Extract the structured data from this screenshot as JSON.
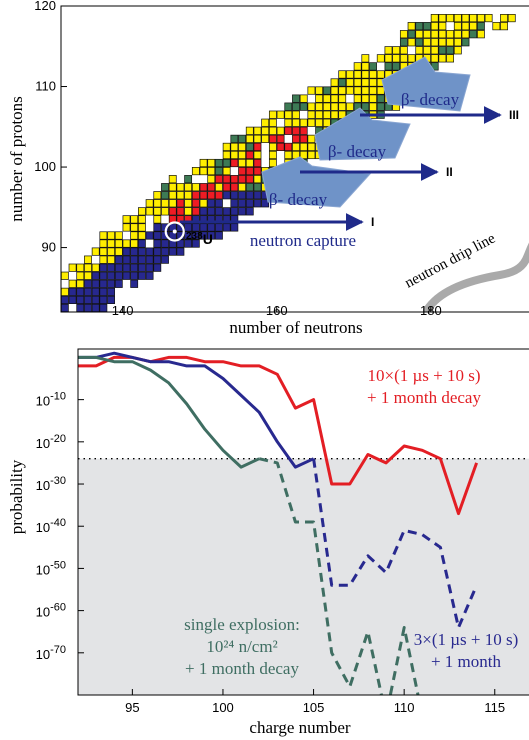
{
  "colors": {
    "yellow": "#ffee00",
    "red": "#ee1c24",
    "green": "#3d7a55",
    "blue": "#27288f",
    "arrow_fill": "#6f93c8",
    "arrow_text": "#1f2a8a",
    "drip": "#aaaaaa",
    "series_red": "#e31e24",
    "series_blue": "#28298f",
    "series_green": "#3f6e62",
    "shade": "#e3e4e6"
  },
  "chart_data": [
    {
      "type": "heatmap",
      "title": "",
      "xlabel": "number of neutrons",
      "ylabel": "number of protons",
      "xlim": [
        132,
        193
      ],
      "ylim": [
        82,
        120
      ],
      "x_ticks": [
        140,
        160,
        180
      ],
      "y_ticks": [
        90,
        100,
        110,
        120
      ],
      "legend": [],
      "band": {
        "description_key": "nuclides colored by category along the stability band",
        "categories": [
          "yellow",
          "red",
          "green",
          "blue"
        ],
        "proton_range": [
          82,
          118
        ],
        "neutron_range": [
          132,
          180
        ]
      },
      "decay_steps": [
        {
          "label": "β- decay",
          "roman": "I"
        },
        {
          "label": "β- decay",
          "roman": "II"
        },
        {
          "label": "β- decay",
          "roman": "III"
        }
      ],
      "capture_label": "neutron capture",
      "start_nucleus": {
        "mass": "238",
        "symbol": "U",
        "N": 146,
        "Z": 92
      },
      "drip_line_label": "neutron drip line"
    },
    {
      "type": "line",
      "title": "",
      "xlabel": "charge number",
      "ylabel": "probability",
      "xlim": [
        92,
        117
      ],
      "ylim": [
        -80,
        2
      ],
      "x_ticks": [
        95,
        100,
        105,
        110,
        115
      ],
      "y_ticks": [
        -10,
        -20,
        -30,
        -40,
        -50,
        -60,
        -70
      ],
      "y_tick_base": "10",
      "threshold": -24,
      "shade_below": -24,
      "grid": false,
      "series": [
        {
          "name_lines": [
            "10×(1 µs + 10 s)",
            "+ 1 month decay"
          ],
          "color_key": "series_red",
          "points": [
            [
              92,
              -2
            ],
            [
              93,
              -2
            ],
            [
              94,
              0
            ],
            [
              95,
              0
            ],
            [
              96,
              -1
            ],
            [
              97,
              0
            ],
            [
              98,
              0
            ],
            [
              99,
              -1
            ],
            [
              100,
              -1
            ],
            [
              101,
              -2
            ],
            [
              102,
              -2
            ],
            [
              103,
              -4
            ],
            [
              104,
              -12
            ],
            [
              105,
              -10
            ],
            [
              106,
              -30
            ],
            [
              107,
              -30
            ],
            [
              108,
              -23
            ],
            [
              109,
              -25
            ],
            [
              110,
              -21
            ],
            [
              111,
              -22
            ],
            [
              112,
              -24
            ],
            [
              113,
              -37
            ],
            [
              114,
              -25
            ]
          ],
          "dash_from": null
        },
        {
          "name_lines": [
            "3×(1 µs + 10 s)",
            "+ 1 month"
          ],
          "color_key": "series_blue",
          "points": [
            [
              92,
              0
            ],
            [
              93,
              0
            ],
            [
              94,
              1
            ],
            [
              95,
              0
            ],
            [
              96,
              -1
            ],
            [
              97,
              -1
            ],
            [
              98,
              -2
            ],
            [
              99,
              -2
            ],
            [
              100,
              -5
            ],
            [
              101,
              -9
            ],
            [
              102,
              -13
            ],
            [
              103,
              -20
            ],
            [
              104,
              -26
            ],
            [
              105,
              -24
            ],
            [
              106,
              -54
            ],
            [
              107,
              -54
            ],
            [
              108,
              -47
            ],
            [
              109,
              -51
            ],
            [
              110,
              -41
            ],
            [
              111,
              -42
            ],
            [
              112,
              -45
            ],
            [
              113,
              -64
            ],
            [
              114,
              -54
            ]
          ],
          "dash_from": 105
        },
        {
          "name_lines": [
            "single explosion:",
            "10²⁴ n/cm²",
            "+ 1 month decay"
          ],
          "color_key": "series_green",
          "points": [
            [
              92,
              0
            ],
            [
              93,
              0
            ],
            [
              94,
              -1
            ],
            [
              95,
              -1
            ],
            [
              96,
              -3
            ],
            [
              97,
              -6
            ],
            [
              98,
              -11
            ],
            [
              99,
              -17
            ],
            [
              100,
              -22
            ],
            [
              101,
              -26
            ],
            [
              102,
              -24
            ],
            [
              103,
              -25
            ],
            [
              104,
              -39
            ],
            [
              105,
              -39
            ],
            [
              106,
              -70
            ],
            [
              107,
              -78
            ],
            [
              108,
              -65
            ],
            [
              109,
              -85
            ],
            [
              110,
              -64
            ],
            [
              111,
              -85
            ]
          ],
          "dash_from": 102
        }
      ]
    }
  ]
}
